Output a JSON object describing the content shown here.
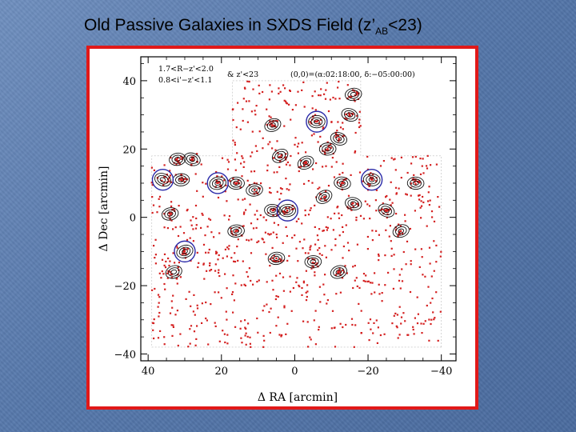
{
  "slide": {
    "title_main": "Old Passive Galaxies in SXDS Field (z’",
    "title_sub": "AB",
    "title_tail": "<23)"
  },
  "chart_data": {
    "type": "scatter",
    "xlabel": "Δ RA [arcmin]",
    "ylabel": "Δ Dec [arcmin]",
    "xlim": [
      42,
      -44
    ],
    "ylim": [
      -42,
      47
    ],
    "x_ticks": [
      40,
      20,
      0,
      -20,
      -40
    ],
    "x_tick_labels": [
      "40",
      "20",
      "0",
      "−20",
      "−40"
    ],
    "y_ticks": [
      40,
      20,
      0,
      -20,
      -40
    ],
    "y_tick_labels": [
      "40",
      "20",
      "0",
      "−20",
      "−40"
    ],
    "annotation_left_1": "1.7<R−z'<2.0",
    "annotation_left_2": "0.8<i'−z'<1.1",
    "annotation_mid": "& z'<23",
    "annotation_right": "(0,0)=(α:02:18:00, δ:−05:00:00)",
    "points_color": "#d42020",
    "circle_color": "#2a2aa8",
    "contour_color": "#111111",
    "survey_outline": [
      [
        -40,
        -38
      ],
      [
        39,
        -38
      ],
      [
        39,
        18
      ],
      [
        17,
        18
      ],
      [
        17,
        40
      ],
      [
        -18,
        40
      ],
      [
        -18,
        18
      ],
      [
        -40,
        18
      ]
    ],
    "point_count_estimate": 850,
    "clusters": [
      {
        "x": 36,
        "y": 11,
        "circle": true
      },
      {
        "x": 21,
        "y": 10,
        "circle": true
      },
      {
        "x": 2,
        "y": 2,
        "circle": true
      },
      {
        "x": -6,
        "y": 28,
        "circle": true
      },
      {
        "x": -21,
        "y": 11,
        "circle": true
      },
      {
        "x": 30,
        "y": -10,
        "circle": true
      },
      {
        "x": 6,
        "y": 2,
        "circle": false
      },
      {
        "x": 11,
        "y": 8,
        "circle": false
      },
      {
        "x": 16,
        "y": 10,
        "circle": false
      },
      {
        "x": 31,
        "y": 11,
        "circle": false
      },
      {
        "x": -13,
        "y": 10,
        "circle": false
      },
      {
        "x": -33,
        "y": 10,
        "circle": false
      },
      {
        "x": -8,
        "y": 6,
        "circle": false
      },
      {
        "x": -16,
        "y": 4,
        "circle": false
      },
      {
        "x": 5,
        "y": -12,
        "circle": false
      },
      {
        "x": 16,
        "y": -4,
        "circle": false
      },
      {
        "x": 33,
        "y": -16,
        "circle": false
      },
      {
        "x": 6,
        "y": 27,
        "circle": false
      },
      {
        "x": -15,
        "y": 30,
        "circle": false
      },
      {
        "x": -16,
        "y": 36,
        "circle": false
      },
      {
        "x": -9,
        "y": 20,
        "circle": false
      },
      {
        "x": -12,
        "y": 23,
        "circle": false
      },
      {
        "x": 4,
        "y": 18,
        "circle": false
      },
      {
        "x": -3,
        "y": 16,
        "circle": false
      },
      {
        "x": 28,
        "y": 17,
        "circle": false
      },
      {
        "x": 32,
        "y": 17,
        "circle": false
      },
      {
        "x": 34,
        "y": 1,
        "circle": false
      },
      {
        "x": -25,
        "y": 2,
        "circle": false
      },
      {
        "x": -5,
        "y": -13,
        "circle": false
      },
      {
        "x": -12,
        "y": -16,
        "circle": false
      },
      {
        "x": -29,
        "y": -4,
        "circle": false
      }
    ]
  }
}
